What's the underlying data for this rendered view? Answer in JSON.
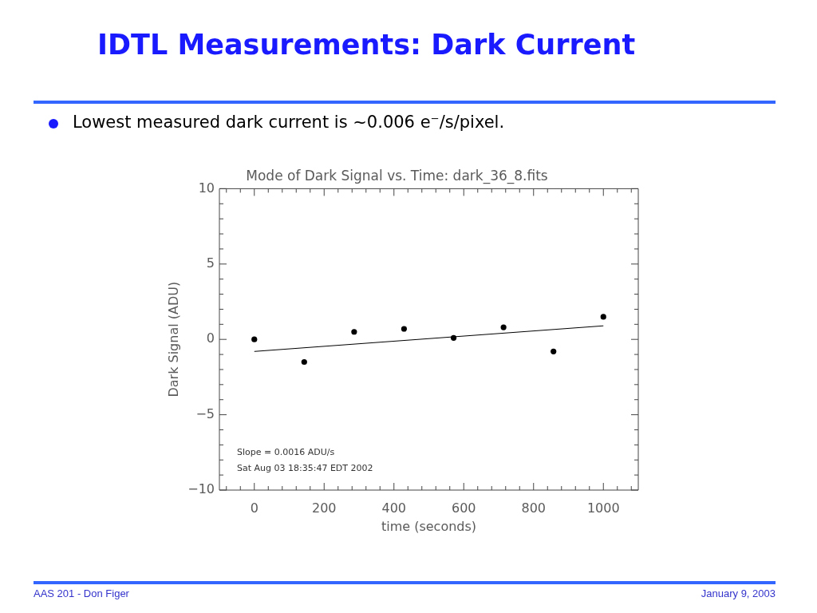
{
  "chart_data": {
    "type": "scatter",
    "title": "IDTL Measurements: Dark Current",
    "subtitle": "Mode of Dark Signal vs. Time: dark_36_8.fits",
    "xlabel": "time (seconds)",
    "ylabel": "Dark Signal (ADU)",
    "annotations": [
      "Lowest measured dark current is ~0.006 e⁻/s/pixel.",
      "Slope = 0.0016 ADU/s",
      "Sat Aug 03 18:35:47 EDT 2002",
      "AAS 201 - Don Figer",
      "January 9, 2003"
    ],
    "series": [
      {
        "type": "scatter",
        "color": "#000000",
        "marker": "circle",
        "x": [
          0,
          143,
          286,
          429,
          571,
          714,
          857,
          1000
        ],
        "values": [
          0,
          -1.5,
          0.5,
          0.7,
          0.1,
          0.8,
          -0.8,
          1.5
        ]
      },
      {
        "type": "line",
        "color": "#000000",
        "marker": "none",
        "x": [
          0,
          1000
        ],
        "values": [
          -0.8,
          0.9
        ]
      }
    ],
    "xlim": [
      -100,
      1100
    ],
    "xticks": [
      {
        "value": -80,
        "label": null
      },
      {
        "value": -40,
        "label": null
      },
      0,
      {
        "value": 40,
        "label": null
      },
      {
        "value": 80,
        "label": null
      },
      {
        "value": 120,
        "label": null
      },
      {
        "value": 160,
        "label": null
      },
      200,
      {
        "value": 240,
        "label": null
      },
      {
        "value": 280,
        "label": null
      },
      {
        "value": 320,
        "label": null
      },
      {
        "value": 360,
        "label": null
      },
      400,
      {
        "value": 440,
        "label": null
      },
      {
        "value": 480,
        "label": null
      },
      {
        "value": 520,
        "label": null
      },
      {
        "value": 560,
        "label": null
      },
      600,
      {
        "value": 640,
        "label": null
      },
      {
        "value": 680,
        "label": null
      },
      {
        "value": 720,
        "label": null
      },
      {
        "value": 760,
        "label": null
      },
      800,
      {
        "value": 840,
        "label": null
      },
      {
        "value": 880,
        "label": null
      },
      {
        "value": 920,
        "label": null
      },
      {
        "value": 960,
        "label": null
      },
      1000,
      {
        "value": 1040,
        "label": null
      },
      {
        "value": 1080,
        "label": null
      }
    ],
    "ylim": [
      -10,
      10
    ],
    "yticks": [
      {
        "value": -10,
        "label": "−10"
      },
      {
        "value": -9,
        "label": null
      },
      {
        "value": -8,
        "label": null
      },
      {
        "value": -7,
        "label": null
      },
      {
        "value": -6,
        "label": null
      },
      {
        "value": -5,
        "label": "−5"
      },
      {
        "value": -4,
        "label": null
      },
      {
        "value": -3,
        "label": null
      },
      {
        "value": -2,
        "label": null
      },
      {
        "value": -1,
        "label": null
      },
      0,
      {
        "value": 1,
        "label": null
      },
      {
        "value": 2,
        "label": null
      },
      {
        "value": 3,
        "label": null
      },
      {
        "value": 4,
        "label": null
      },
      5,
      {
        "value": 6,
        "label": null
      },
      {
        "value": 7,
        "label": null
      },
      {
        "value": 8,
        "label": null
      },
      {
        "value": 9,
        "label": null
      },
      10
    ]
  }
}
